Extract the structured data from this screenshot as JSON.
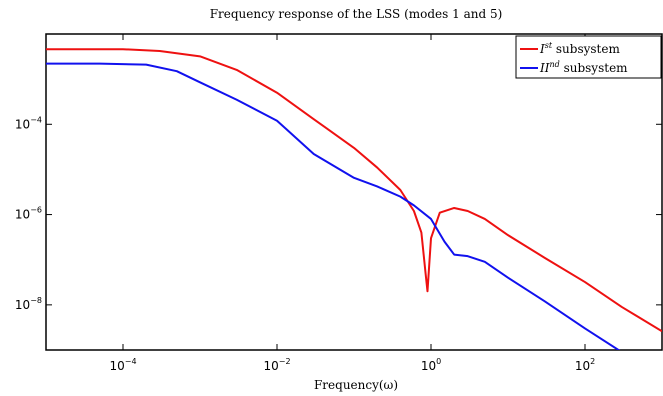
{
  "chart_data": {
    "type": "line",
    "title": "Frequency response of the LSS (modes 1 and 5)",
    "xlabel": "Frequency(ω)",
    "ylabel": "",
    "xscale": "log",
    "yscale": "log",
    "xlim": [
      1e-05,
      1000
    ],
    "ylim": [
      1e-09,
      0.01
    ],
    "x_ticks": [
      0.0001,
      0.01,
      1,
      100
    ],
    "x_tick_labels": [
      {
        "base": "10",
        "exp": "−4"
      },
      {
        "base": "10",
        "exp": "−2"
      },
      {
        "base": "10",
        "exp": "0"
      },
      {
        "base": "10",
        "exp": "2"
      }
    ],
    "y_ticks": [
      1e-08,
      1e-06,
      0.0001
    ],
    "y_tick_labels": [
      {
        "base": "10",
        "exp": "−8"
      },
      {
        "base": "10",
        "exp": "−6"
      },
      {
        "base": "10",
        "exp": "−4"
      }
    ],
    "grid": false,
    "legend_position": "top-right",
    "series": [
      {
        "name_italic": "I",
        "name_sup": "st",
        "name_rest": " subsystem",
        "color": "#ee1111",
        "x": [
          1e-05,
          0.0001,
          0.0003,
          0.001,
          0.003,
          0.01,
          0.03,
          0.1,
          0.2,
          0.4,
          0.6,
          0.75,
          0.85,
          0.9,
          1.0,
          1.3,
          2,
          3,
          5,
          10,
          30,
          100,
          300,
          1000
        ],
        "y": [
          0.0046,
          0.0046,
          0.0042,
          0.0032,
          0.0016,
          0.0005,
          0.00013,
          3e-05,
          1.1e-05,
          3.5e-06,
          1.2e-06,
          4e-07,
          5e-08,
          2e-08,
          3e-07,
          1.1e-06,
          1.4e-06,
          1.2e-06,
          8e-07,
          3.5e-07,
          1.1e-07,
          3.2e-08,
          9e-09,
          2.6e-09
        ]
      },
      {
        "name_italic": "II",
        "name_sup": "nd",
        "name_rest": " subsystem",
        "color": "#1111ee",
        "x": [
          1e-05,
          5e-05,
          0.0002,
          0.0005,
          0.001,
          0.003,
          0.01,
          0.03,
          0.1,
          0.2,
          0.4,
          0.6,
          1.0,
          1.5,
          2.0,
          3,
          5,
          10,
          30,
          100,
          300,
          1000
        ],
        "y": [
          0.0022,
          0.0022,
          0.0021,
          0.0015,
          0.00085,
          0.00035,
          0.00012,
          2.2e-05,
          6.5e-06,
          4.2e-06,
          2.5e-06,
          1.6e-06,
          8e-07,
          2.5e-07,
          1.3e-07,
          1.2e-07,
          9e-08,
          4e-08,
          1.2e-08,
          3e-09,
          9e-10,
          2.8e-10
        ]
      }
    ]
  }
}
